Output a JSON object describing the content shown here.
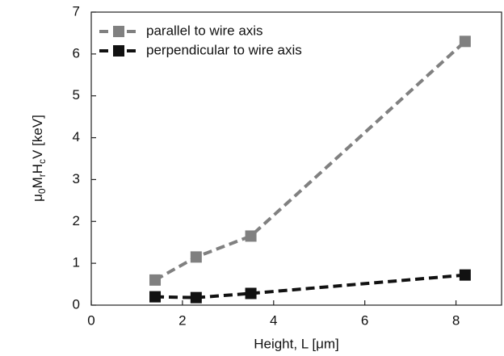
{
  "chart_data": {
    "type": "line",
    "x_label": "Height, L  [μm]",
    "y_label": [
      "μ",
      "0",
      "M",
      "r",
      "H",
      "c",
      "V [keV]"
    ],
    "x": [
      1.4,
      2.3,
      3.5,
      8.2
    ],
    "series": [
      {
        "name": "parallel to wire axis",
        "color": "#808080",
        "values": [
          0.6,
          1.15,
          1.65,
          6.3
        ]
      },
      {
        "name": "perpendicular to wire axis",
        "color": "#111111",
        "values": [
          0.2,
          0.18,
          0.28,
          0.72
        ]
      }
    ],
    "xlim": [
      0,
      9
    ],
    "xticks": [
      0,
      2,
      4,
      6,
      8
    ],
    "ylim": [
      0,
      7
    ],
    "yticks": [
      0,
      1,
      2,
      3,
      4,
      5,
      6,
      7
    ],
    "grid": false,
    "legend": "top-left"
  }
}
